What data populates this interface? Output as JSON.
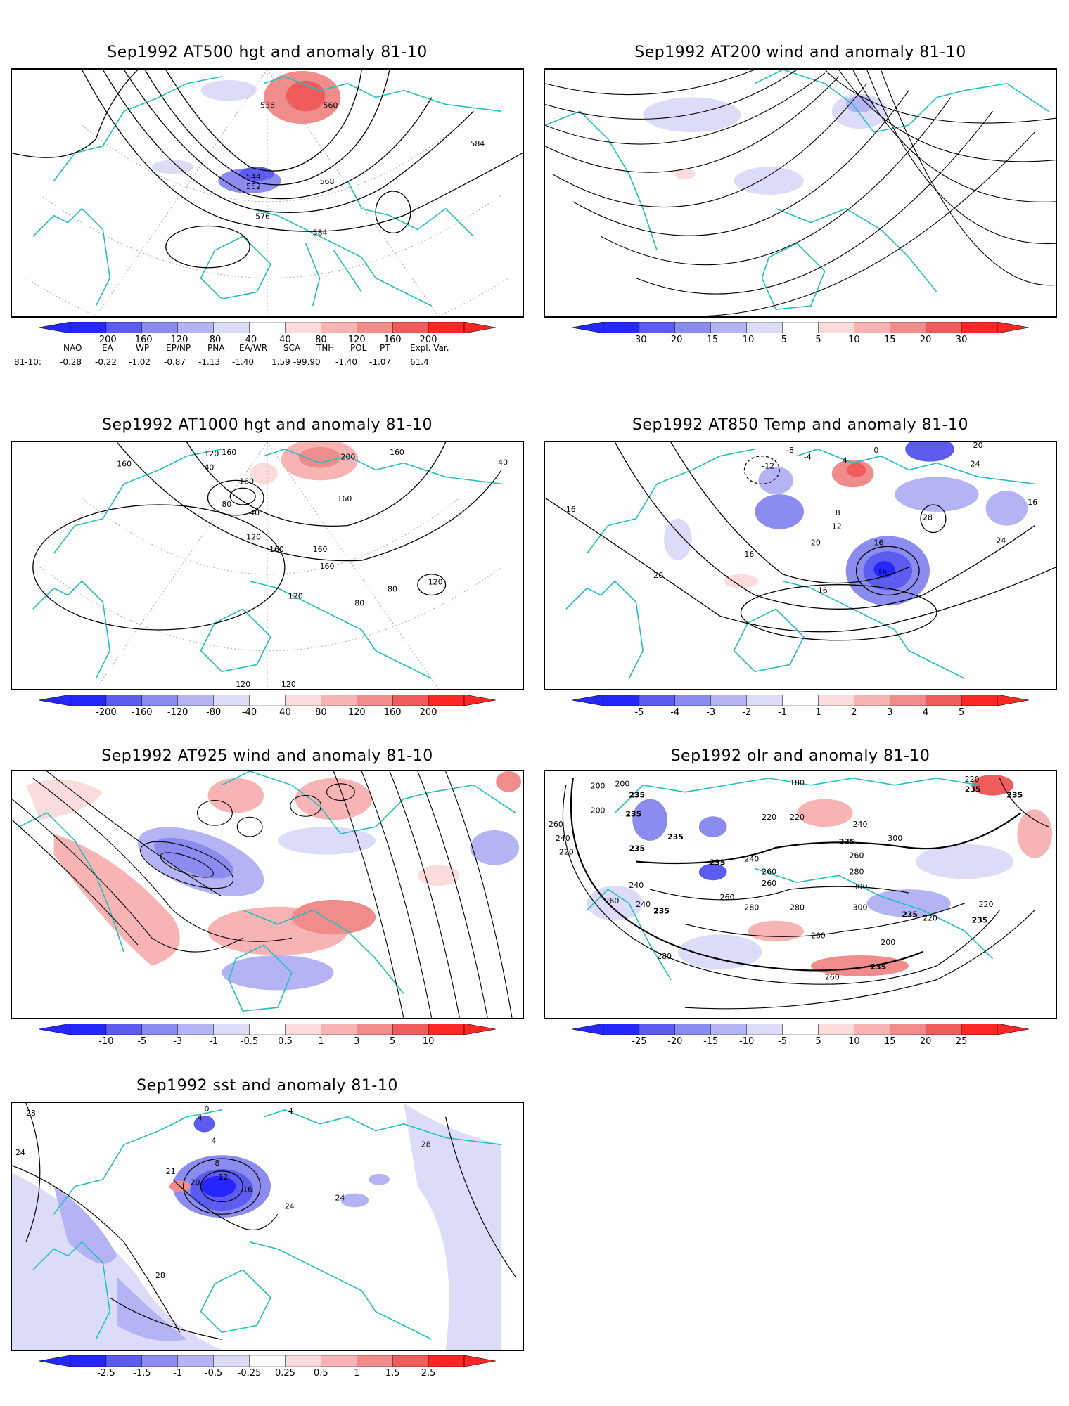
{
  "panels": [
    {
      "id": "p1",
      "title": "Sep1992 AT500 hgt and anomaly 81-10",
      "colorbar": [
        "-200",
        "-160",
        "-120",
        "-80",
        "-40",
        "40",
        "80",
        "120",
        "160",
        "200"
      ],
      "contour_labels": [
        "536",
        "560",
        "584",
        "544",
        "552",
        "568",
        "576",
        "584"
      ]
    },
    {
      "id": "p2",
      "title": "Sep1992 AT200 wind and anomaly 81-10",
      "colorbar": [
        "-30",
        "-20",
        "-15",
        "-10",
        "-5",
        "5",
        "10",
        "15",
        "20",
        "30"
      ],
      "contour_labels": []
    },
    {
      "id": "p3",
      "title": "Sep1992 AT1000 hgt and anomaly 81-10",
      "colorbar": [
        "-200",
        "-160",
        "-120",
        "-80",
        "-40",
        "40",
        "80",
        "120",
        "160",
        "200"
      ],
      "contour_labels": [
        "160",
        "120",
        "160",
        "200",
        "160",
        "40",
        "160",
        "40",
        "80",
        "160",
        "40",
        "120",
        "160",
        "160",
        "160",
        "120",
        "80",
        "80",
        "120",
        "120",
        "120"
      ]
    },
    {
      "id": "p4",
      "title": "Sep1992 AT850 Temp and anomaly 81-10",
      "colorbar": [
        "-5",
        "-4",
        "-3",
        "-2",
        "-1",
        "1",
        "2",
        "3",
        "4",
        "5"
      ],
      "contour_labels": [
        "-8",
        "-4",
        "0",
        "20",
        "-12",
        "4",
        "24",
        "16",
        "8",
        "12",
        "28",
        "16",
        "20",
        "16",
        "16",
        "24",
        "16",
        "20",
        "16"
      ]
    },
    {
      "id": "p5",
      "title": "Sep1992 AT925 wind and anomaly 81-10",
      "colorbar": [
        "-10",
        "-5",
        "-3",
        "-1",
        "-0.5",
        "0.5",
        "1",
        "3",
        "5",
        "10"
      ],
      "contour_labels": []
    },
    {
      "id": "p6",
      "title": "Sep1992 olr and anomaly 81-10",
      "colorbar": [
        "-25",
        "-20",
        "-15",
        "-10",
        "-5",
        "5",
        "10",
        "15",
        "20",
        "25"
      ],
      "contour_labels": [
        "200",
        "200",
        "180",
        "220",
        "235",
        "235",
        "235",
        "260",
        "200",
        "235",
        "220",
        "220",
        "240",
        "240",
        "235",
        "235",
        "300",
        "235",
        "220",
        "240",
        "260",
        "260",
        "280",
        "260",
        "300",
        "240",
        "235",
        "260",
        "280",
        "235",
        "220",
        "280",
        "260",
        "300",
        "235",
        "200",
        "220",
        "260",
        "240",
        "235",
        "280",
        "260",
        "235"
      ]
    },
    {
      "id": "p7",
      "title": "Sep1992 sst and anomaly 81-10",
      "colorbar": [
        "-2.5",
        "-1.5",
        "-1",
        "-0.5",
        "-0.25",
        "0.25",
        "0.5",
        "1",
        "1.5",
        "2.5"
      ],
      "contour_labels": [
        "28",
        "24",
        "4",
        "0",
        "4",
        "4",
        "8",
        "21",
        "12",
        "20",
        "16",
        "24",
        "24",
        "28",
        "28"
      ]
    }
  ],
  "teleconnection": {
    "headers": [
      "NAO",
      "EA",
      "WP",
      "EP/NP",
      "PNA",
      "EA/WR",
      "SCA",
      "TNH",
      "POL",
      "PT",
      "Expl. Var."
    ],
    "row_label": "81-10:",
    "values": [
      "-0.28",
      "-0.22",
      "-1.02",
      "-0.87",
      "-1.13",
      "-1.40",
      "1.59",
      "-99.90",
      "-1.40",
      "-1.07",
      "61.4"
    ]
  },
  "colors": {
    "coastline": "#1fbfbf",
    "contour": "#000000",
    "neg": [
      "#2626ff",
      "#5c5cf0",
      "#8c8cf0",
      "#b4b4f4",
      "#dcdcf8"
    ],
    "pos": [
      "#fadcdc",
      "#f8b4b4",
      "#f08c8c",
      "#f05c5c",
      "#ff2626"
    ]
  }
}
